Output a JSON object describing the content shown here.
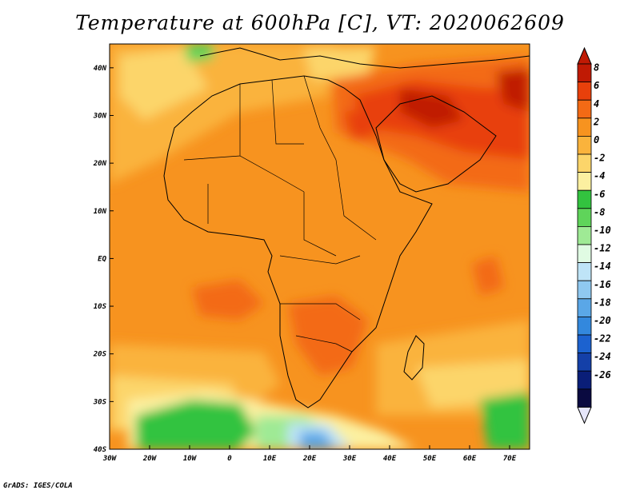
{
  "title": "Temperature at 600hPa [C], VT: 2020062609",
  "credit": "GrADS: IGES/COLA",
  "map": {
    "lon_range": [
      -30,
      75
    ],
    "lat_range": [
      -40,
      45
    ],
    "lon_ticks": [
      "30W",
      "20W",
      "10W",
      "0",
      "10E",
      "20E",
      "30E",
      "40E",
      "50E",
      "60E",
      "70E"
    ],
    "lat_ticks": [
      "40S",
      "30S",
      "20S",
      "10S",
      "EQ",
      "10N",
      "20N",
      "30N",
      "40N"
    ],
    "colorbar": {
      "levels": [
        "8",
        "6",
        "4",
        "2",
        "0",
        "-2",
        "-4",
        "-6",
        "-8",
        "-10",
        "-12",
        "-14",
        "-16",
        "-18",
        "-20",
        "-22",
        "-24",
        "-26"
      ],
      "colors": [
        "#c01a04",
        "#e8400b",
        "#f36a15",
        "#f7931f",
        "#fab33c",
        "#fcd56a",
        "#fcf0a0",
        "#33c33f",
        "#5fd45a",
        "#9fea95",
        "#e0fbe3",
        "#bfe4f7",
        "#8fc8f0",
        "#5aa7e7",
        "#3388dd",
        "#1c62cf",
        "#1440a8",
        "#0a1e78",
        "#0a0a40"
      ],
      "tip_top": "#c01a04",
      "tip_bottom": "#e6e6fa"
    }
  }
}
